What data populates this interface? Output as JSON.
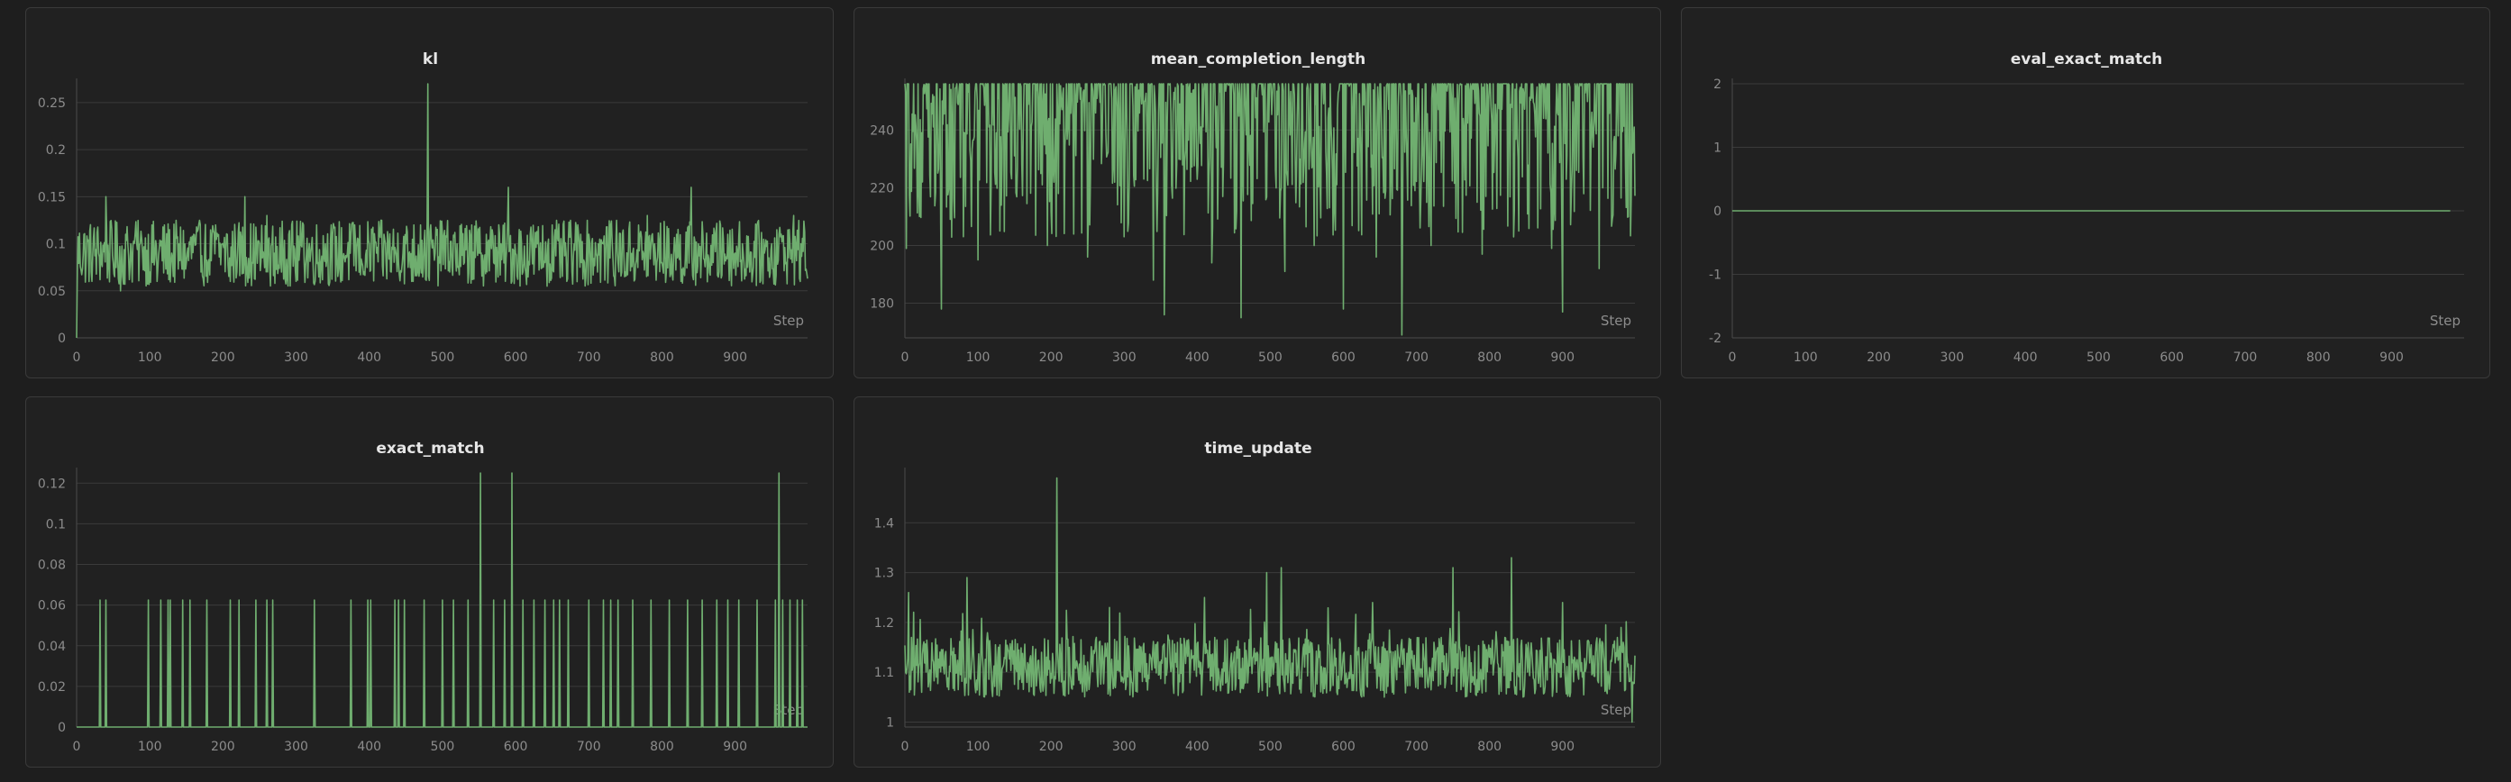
{
  "colors": {
    "background": "#1e1e1e",
    "panel": "#212121",
    "line": "#6fae6f"
  },
  "chart_data": [
    {
      "id": "kl",
      "type": "line",
      "title": "kl",
      "xlabel": "Step",
      "ylim": [
        0,
        0.27
      ],
      "yticks": [
        0,
        0.05,
        0.1,
        0.15,
        0.2,
        0.25
      ],
      "ytick_labels": [
        "0",
        "0.05",
        "0.1",
        "0.15",
        "0.2",
        "0.25"
      ],
      "xticks": [
        0,
        100,
        200,
        300,
        400,
        500,
        600,
        700,
        800,
        900
      ],
      "xlim": [
        0,
        999
      ],
      "series": [
        {
          "values_per_10_steps": [
            0.01,
            0.11,
            0.07,
            0.09,
            0.15,
            0.08,
            0.05,
            0.1,
            0.11,
            0.09,
            0.07,
            0.06,
            0.12,
            0.09,
            0.1,
            0.08,
            0.11,
            0.07,
            0.08,
            0.12,
            0.1,
            0.06,
            0.09,
            0.15,
            0.08,
            0.1,
            0.13,
            0.09,
            0.07,
            0.11,
            0.06,
            0.12,
            0.09,
            0.08,
            0.1,
            0.11,
            0.07,
            0.09,
            0.12,
            0.08,
            0.1,
            0.09,
            0.11,
            0.07,
            0.08,
            0.1,
            0.06,
            0.12,
            0.27,
            0.09,
            0.11,
            0.07,
            0.1,
            0.08,
            0.12,
            0.09,
            0.11,
            0.08,
            0.1,
            0.16,
            0.09,
            0.07,
            0.11,
            0.1,
            0.08,
            0.12,
            0.09,
            0.06,
            0.1,
            0.08,
            0.11,
            0.09,
            0.1,
            0.12,
            0.08,
            0.07,
            0.09,
            0.11,
            0.13,
            0.1,
            0.08,
            0.09,
            0.11,
            0.07,
            0.16,
            0.1,
            0.09,
            0.08,
            0.12,
            0.11,
            0.09,
            0.1,
            0.07,
            0.12,
            0.09,
            0.1,
            0.11,
            0.08,
            0.13,
            0.1
          ],
          "mean": 0.09,
          "noise": 0.035
        }
      ]
    },
    {
      "id": "mean_completion_length",
      "type": "line",
      "title": "mean_completion_length",
      "xlabel": "Step",
      "ylim": [
        168,
        256
      ],
      "yticks": [
        180,
        200,
        220,
        240
      ],
      "ytick_labels": [
        "180",
        "200",
        "220",
        "240"
      ],
      "xticks": [
        0,
        100,
        200,
        300,
        400,
        500,
        600,
        700,
        800,
        900
      ],
      "xlim": [
        0,
        999
      ],
      "series": [
        {
          "dips": [
            [
              2,
              199
            ],
            [
              20,
              210
            ],
            [
              50,
              178
            ],
            [
              100,
              195
            ],
            [
              130,
              205
            ],
            [
              195,
              200
            ],
            [
              250,
              196
            ],
            [
              300,
              203
            ],
            [
              340,
              188
            ],
            [
              355,
              176
            ],
            [
              420,
              194
            ],
            [
              460,
              175
            ],
            [
              520,
              191
            ],
            [
              560,
              200
            ],
            [
              600,
              178
            ],
            [
              645,
              196
            ],
            [
              680,
              169
            ],
            [
              720,
              200
            ],
            [
              790,
              197
            ],
            [
              840,
              205
            ],
            [
              885,
              199
            ],
            [
              900,
              177
            ],
            [
              950,
              192
            ],
            [
              990,
              210
            ]
          ],
          "upper": 256,
          "lower_typical": 215
        }
      ]
    },
    {
      "id": "eval_exact_match",
      "type": "line",
      "title": "eval_exact_match",
      "xlabel": "Step",
      "ylim": [
        -2,
        2
      ],
      "yticks": [
        -2,
        -1,
        0,
        1,
        2
      ],
      "ytick_labels": [
        "-2",
        "-1",
        "0",
        "1",
        "2"
      ],
      "xticks": [
        0,
        100,
        200,
        300,
        400,
        500,
        600,
        700,
        800,
        900
      ],
      "xlim": [
        0,
        999
      ],
      "series": [
        {
          "x": [
            0,
            980
          ],
          "y": [
            0,
            0
          ]
        }
      ]
    },
    {
      "id": "exact_match",
      "type": "line",
      "title": "exact_match",
      "xlabel": "Step",
      "ylim": [
        0,
        0.125
      ],
      "yticks": [
        0,
        0.02,
        0.04,
        0.06,
        0.08,
        0.1,
        0.12
      ],
      "ytick_labels": [
        "0",
        "0.02",
        "0.04",
        "0.06",
        "0.08",
        "0.1",
        "0.12"
      ],
      "xticks": [
        0,
        100,
        200,
        300,
        400,
        500,
        600,
        700,
        800,
        900
      ],
      "xlim": [
        0,
        999
      ],
      "series": [
        {
          "spikes": [
            [
              32,
              0.0625
            ],
            [
              40,
              0.0625
            ],
            [
              98,
              0.0625
            ],
            [
              115,
              0.0625
            ],
            [
              125,
              0.0625
            ],
            [
              128,
              0.0625
            ],
            [
              145,
              0.0625
            ],
            [
              155,
              0.0625
            ],
            [
              178,
              0.0625
            ],
            [
              210,
              0.0625
            ],
            [
              222,
              0.0625
            ],
            [
              245,
              0.0625
            ],
            [
              260,
              0.0625
            ],
            [
              268,
              0.0625
            ],
            [
              325,
              0.0625
            ],
            [
              375,
              0.0625
            ],
            [
              398,
              0.0625
            ],
            [
              402,
              0.0625
            ],
            [
              435,
              0.0625
            ],
            [
              440,
              0.0625
            ],
            [
              448,
              0.0625
            ],
            [
              475,
              0.0625
            ],
            [
              500,
              0.0625
            ],
            [
              515,
              0.0625
            ],
            [
              535,
              0.0625
            ],
            [
              552,
              0.125
            ],
            [
              570,
              0.0625
            ],
            [
              585,
              0.0625
            ],
            [
              595,
              0.125
            ],
            [
              610,
              0.0625
            ],
            [
              625,
              0.0625
            ],
            [
              640,
              0.0625
            ],
            [
              652,
              0.0625
            ],
            [
              660,
              0.0625
            ],
            [
              672,
              0.0625
            ],
            [
              700,
              0.0625
            ],
            [
              720,
              0.0625
            ],
            [
              730,
              0.0625
            ],
            [
              740,
              0.0625
            ],
            [
              760,
              0.0625
            ],
            [
              785,
              0.0625
            ],
            [
              810,
              0.0625
            ],
            [
              835,
              0.0625
            ],
            [
              855,
              0.0625
            ],
            [
              875,
              0.0625
            ],
            [
              890,
              0.0625
            ],
            [
              905,
              0.0625
            ],
            [
              930,
              0.0625
            ],
            [
              955,
              0.0625
            ],
            [
              965,
              0.0625
            ],
            [
              960,
              0.125
            ],
            [
              975,
              0.0625
            ],
            [
              985,
              0.0625
            ],
            [
              992,
              0.0625
            ]
          ]
        }
      ]
    },
    {
      "id": "time_update",
      "type": "line",
      "title": "time_update",
      "xlabel": "Step",
      "ylim": [
        0.99,
        1.5
      ],
      "yticks": [
        1,
        1.1,
        1.2,
        1.3,
        1.4
      ],
      "ytick_labels": [
        "1",
        "1.1",
        "1.2",
        "1.3",
        "1.4"
      ],
      "xticks": [
        0,
        100,
        200,
        300,
        400,
        500,
        600,
        700,
        800,
        900
      ],
      "xlim": [
        0,
        999
      ],
      "series": [
        {
          "peaks": [
            [
              5,
              1.26
            ],
            [
              85,
              1.29
            ],
            [
              208,
              1.49
            ],
            [
              280,
              1.23
            ],
            [
              410,
              1.25
            ],
            [
              495,
              1.3
            ],
            [
              515,
              1.31
            ],
            [
              640,
              1.24
            ],
            [
              750,
              1.31
            ],
            [
              830,
              1.33
            ],
            [
              900,
              1.24
            ],
            [
              980,
              1.19
            ]
          ],
          "base": 1.11,
          "noise": 0.06,
          "floor": 1.0
        }
      ]
    }
  ]
}
